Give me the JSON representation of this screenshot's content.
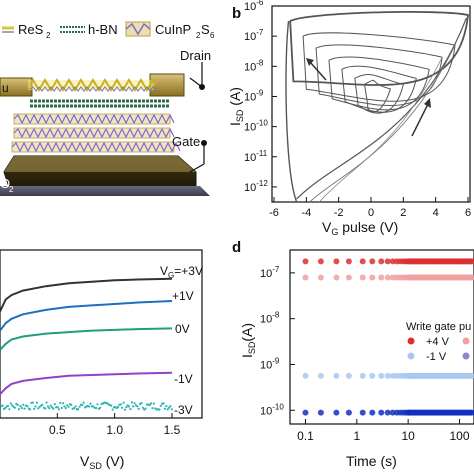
{
  "panel_a": {
    "legend": [
      "ReS",
      "h-BN",
      "CuInP",
      "S"
    ],
    "legend_subs": [
      "2",
      "2",
      "6"
    ],
    "drain_label": "Drain",
    "gate_label": "Gate",
    "cut_label_left": "u",
    "cut_label_o2": "O",
    "cut_label_o2_sub": "2"
  },
  "panel_b": {
    "label": "b",
    "xlabel_main": "V",
    "xlabel_sub": "G",
    "xlabel_rest": " pulse (V)",
    "ylabel_main": "I",
    "ylabel_sub": "SD",
    "ylabel_rest": " (A)",
    "xticks": [
      "-6",
      "-4",
      "-2",
      "0",
      "2",
      "4",
      "6"
    ],
    "ybase": "10",
    "yexps": [
      "-6",
      "-7",
      "-8",
      "-9",
      "-10",
      "-11",
      "-12"
    ]
  },
  "panel_c": {
    "xticks": [
      "0.5",
      "1.0",
      "1.5"
    ],
    "xlabel_main": "V",
    "xlabel_sub": "SD",
    "xlabel_rest": " (V)",
    "curve_labels": [
      "V",
      "G",
      "=+3V",
      "+1V",
      "0V",
      "-1V",
      "-3V"
    ]
  },
  "panel_d": {
    "label": "d",
    "ylabel_main": "I",
    "ylabel_sub": "SD",
    "ylabel_rest": "(A)",
    "xlabel": "Time (s)",
    "xticks": [
      "0.1",
      "1",
      "10",
      "100"
    ],
    "ybase": "10",
    "yexps": [
      "-7",
      "-8",
      "-9",
      "-10"
    ],
    "legend_title": "Write gate pu",
    "legend_items": [
      "+4 V",
      "-1 V"
    ]
  },
  "colors": {
    "c_top": "#333333",
    "c_1": "#1f6fbf",
    "c_0": "#1f9e80",
    "c_m1": "#8e44c8",
    "c_m3": "#2bb3b3",
    "d_red": "#d93030",
    "d_pink": "#f0a0a0",
    "d_lblue": "#a8c8f0",
    "d_blue": "#1030c0"
  },
  "chart_data": [
    {
      "type": "line",
      "panel": "b",
      "xlabel": "VG pulse (V)",
      "ylabel": "ISD (A)",
      "xlim": [
        -6,
        6
      ],
      "ylim_log10": [
        -12.5,
        -6
      ],
      "yscale": "log",
      "series": [
        {
          "x": [
            -5,
            -4,
            -3,
            -2,
            -1,
            0,
            1,
            2,
            3,
            4,
            5,
            6
          ],
          "y_log10": [
            -6.5,
            -6.6,
            -6.7,
            -6.8,
            -6.9,
            -7.0,
            -7.05,
            -7.1,
            -7.2,
            -7.3,
            -7.4,
            -7.7
          ]
        },
        {
          "x": [
            -5,
            -4,
            -2,
            0,
            2,
            4,
            6
          ],
          "y_log10": [
            -12.5,
            -11.6,
            -10.9,
            -10.5,
            -10.0,
            -9.0,
            -6.4
          ]
        }
      ]
    },
    {
      "type": "line",
      "panel": "c",
      "xlabel": "VSD (V)",
      "xlim": [
        0,
        1.5
      ],
      "series": [
        {
          "name": "VG=+3V",
          "x": [
            0,
            0.05,
            0.1,
            0.2,
            0.4,
            0.6,
            0.8,
            1.0,
            1.2,
            1.5
          ],
          "y": [
            0.68,
            0.76,
            0.79,
            0.82,
            0.85,
            0.87,
            0.88,
            0.89,
            0.895,
            0.9
          ]
        },
        {
          "name": "+1V",
          "x": [
            0,
            0.05,
            0.1,
            0.2,
            0.4,
            0.6,
            0.8,
            1.0,
            1.2,
            1.5
          ],
          "y": [
            0.55,
            0.6,
            0.63,
            0.66,
            0.69,
            0.71,
            0.72,
            0.73,
            0.74,
            0.75
          ]
        },
        {
          "name": "0V",
          "x": [
            0,
            0.05,
            0.1,
            0.2,
            0.4,
            0.6,
            0.8,
            1.0,
            1.2,
            1.5
          ],
          "y": [
            0.42,
            0.46,
            0.49,
            0.51,
            0.53,
            0.54,
            0.55,
            0.555,
            0.56,
            0.565
          ]
        },
        {
          "name": "-1V",
          "x": [
            0,
            0.05,
            0.1,
            0.2,
            0.4,
            0.6,
            0.8,
            1.0,
            1.2,
            1.5
          ],
          "y": [
            0.12,
            0.16,
            0.19,
            0.21,
            0.23,
            0.245,
            0.25,
            0.255,
            0.26,
            0.265
          ]
        },
        {
          "name": "-3V",
          "x": [
            0,
            0.25,
            0.5,
            0.75,
            1.0,
            1.25,
            1.5
          ],
          "y": [
            0.02,
            0.03,
            0.01,
            0.03,
            0.02,
            0.03,
            0.02
          ]
        }
      ]
    },
    {
      "type": "scatter",
      "panel": "d",
      "xlabel": "Time (s)",
      "ylabel": "ISD(A)",
      "xscale": "log",
      "yscale": "log",
      "xlim": [
        0.05,
        300
      ],
      "ylim_log10": [
        -10.2,
        -6.5
      ],
      "series": [
        {
          "name": "+4 V",
          "y_log10": -6.75
        },
        {
          "y_log10": -7.1
        },
        {
          "name": "-1 V",
          "y_log10": -9.25
        },
        {
          "y_log10": -10.05
        }
      ]
    }
  ]
}
